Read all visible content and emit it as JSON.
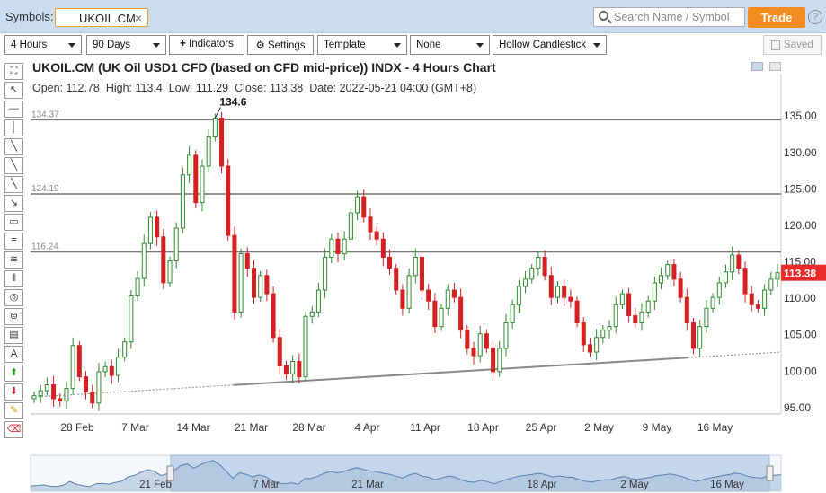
{
  "topbar": {
    "symbols_label": "Symbols:",
    "symbol_chip": "UKOIL.CM",
    "search_placeholder": "Search Name / Symbol",
    "trade_label": "Trade",
    "help": "?"
  },
  "toolbar": {
    "interval": "4 Hours",
    "range": "90 Days",
    "indicators": "Indicators",
    "settings": "Settings",
    "template": "Template",
    "none": "None",
    "chart_type": "Hollow Candlestick",
    "saved": "Saved"
  },
  "chart": {
    "title": "UKOIL.CM (UK Oil USD1 CFD (based on CFD mid-price)) INDX - 4 Hours Chart",
    "open_label": "Open:",
    "open": "112.78",
    "high_label": "High:",
    "high": "113.4",
    "low_label": "Low:",
    "low": "111.29",
    "close_label": "Close:",
    "close": "113.38",
    "date_label": "Date:",
    "date": "2022-05-21 04:00",
    "tz": "(GMT+8)",
    "peak_label": "134.6",
    "current_price": "113.38"
  },
  "chart_data": {
    "type": "line",
    "title": "UKOIL.CM (UK Oil USD1 CFD (based on CFD mid-price)) INDX - 4 Hours Chart",
    "y_ticks": [
      "135.00",
      "130.00",
      "125.00",
      "120.00",
      "115.00",
      "110.00",
      "105.00",
      "100.00",
      "95.00"
    ],
    "ylim": [
      94,
      137
    ],
    "x_ticks": [
      "28 Feb",
      "7 Mar",
      "14 Mar",
      "21 Mar",
      "28 Mar",
      "4 Apr",
      "11 Apr",
      "18 Apr",
      "25 Apr",
      "2 May",
      "9 May",
      "16 May"
    ],
    "horizontal_levels": [
      {
        "label": "134.37",
        "value": 134.37
      },
      {
        "label": "124.19",
        "value": 124.19
      },
      {
        "label": "116.24",
        "value": 116.24
      }
    ],
    "trendline": {
      "from": 96.3,
      "to": 102.5
    },
    "series": [
      {
        "values": [
          96.5,
          97.2,
          98.0,
          96.1,
          95.8,
          97.5,
          103.4,
          99.1,
          97.0,
          95.5,
          99.8,
          100.5,
          99.3,
          101.8,
          103.9,
          110.2,
          112.6,
          117.4,
          121.0,
          118.3,
          112.0,
          115.0,
          119.5,
          126.8,
          129.5,
          123.0,
          128.0,
          132.0,
          134.6,
          128.0,
          118.5,
          108.0,
          116.0,
          114.0,
          110.0,
          113.0,
          110.5,
          104.5,
          100.6,
          99.5,
          101.2,
          99.1,
          107.4,
          108.0,
          111.0,
          115.5,
          118.0,
          116.0,
          118.0,
          121.6,
          123.8,
          121.0,
          119.0,
          118.0,
          115.5,
          114.0,
          111.0,
          108.5,
          113.0,
          115.5,
          111.0,
          109.5,
          106.0,
          108.5,
          111.0,
          110.0,
          105.5,
          103.0,
          102.0,
          105.0,
          103.0,
          99.8,
          103.0,
          106.5,
          109.0,
          111.5,
          112.5,
          114.0,
          115.5,
          113.0,
          110.0,
          111.5,
          110.0,
          109.5,
          106.5,
          103.5,
          102.5,
          104.5,
          105.5,
          106.0,
          109.0,
          110.5,
          107.5,
          106.5,
          108.0,
          109.5,
          112.0,
          113.0,
          114.5,
          112.5,
          110.0,
          106.5,
          103.0,
          106.0,
          108.5,
          110.0,
          112.0,
          113.5,
          115.8,
          114.0,
          110.5,
          109.0,
          108.5,
          111.0,
          112.5,
          113.38
        ]
      }
    ]
  },
  "navigator": {
    "labels": [
      "21 Feb",
      "7 Mar",
      "21 Mar",
      "18 Apr",
      "2 May",
      "16 May"
    ]
  },
  "tools": {
    "items": [
      "crosshair-icon",
      "pointer-icon",
      "horizontal-line-icon",
      "vertical-line-icon",
      "trend-line-icon",
      "ray-icon",
      "ray-dotted-icon",
      "arrow-line-icon",
      "rectangle-icon",
      "fibonacci-retracement-icon",
      "fibonacci-fan-icon",
      "fibonacci-timezone-icon",
      "gann-fan-icon",
      "ellipse-icon",
      "channel-icon",
      "text-icon",
      "buy-arrow-icon",
      "sell-arrow-icon",
      "highlighter-icon",
      "eraser-icon"
    ],
    "text_glyph": "A"
  },
  "colors": {
    "up": "#2e8b2e",
    "down": "#d42020",
    "price_badge": "#e82c2c",
    "levels": "#7a7a7a",
    "topbar": "#c9dcf0",
    "trade": "#f28c20"
  }
}
